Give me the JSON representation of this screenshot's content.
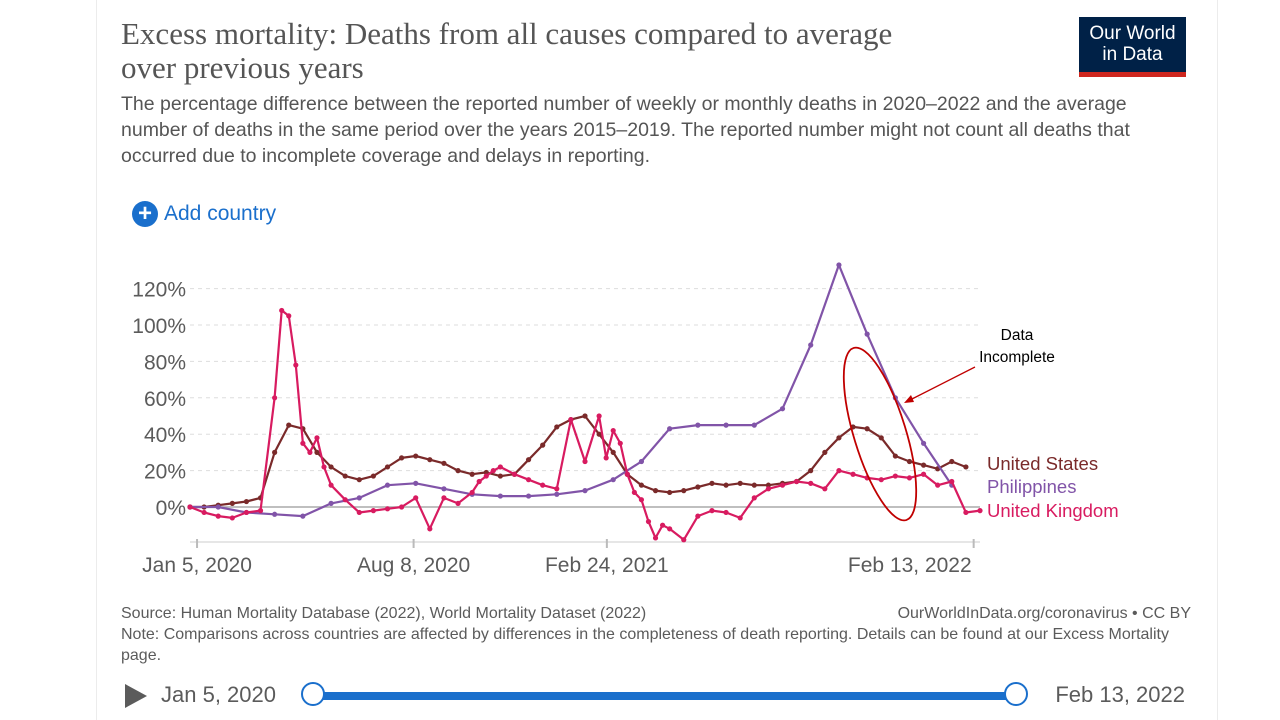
{
  "header": {
    "title": "Excess mortality: Deaths from all causes compared to average over previous years",
    "subtitle": "The percentage difference between the reported number of weekly or monthly deaths in 2020–2022 and the average number of deaths in the same period over the years 2015–2019. The reported number might not count all deaths that occurred due to incomplete coverage and delays in reporting.",
    "logo_line1": "Our World",
    "logo_line2": "in Data"
  },
  "controls": {
    "add_country": "Add country"
  },
  "footer": {
    "source": "Source: Human Mortality Database (2022), World Mortality Dataset (2022)",
    "license": "OurWorldInData.org/coronavirus • CC BY",
    "note": "Note: Comparisons across countries are affected by differences in the completeness of death reporting. Details can be found at our Excess Mortality page."
  },
  "timeline": {
    "start_label": "Jan 5, 2020",
    "end_label": "Feb 13, 2022",
    "start_fraction": 0,
    "end_fraction": 1
  },
  "colors": {
    "grid": "#dddddd",
    "axis": "#bbbbbb",
    "text": "#5b5b5b",
    "accent": "#1a6fcc",
    "annotation": "#c00000"
  },
  "chart_data": {
    "type": "line",
    "x_unit": "week index (weekly data, week 0 = Dec 29, 2019)",
    "x_tick_labels": [
      "Jan 5, 2020",
      "Aug 8, 2020",
      "Feb 24, 2021",
      "Feb 13, 2022"
    ],
    "x_tick_positions": [
      1,
      31.7,
      59.1,
      111.1
    ],
    "xlim": [
      0,
      112
    ],
    "ylim": [
      -20,
      130
    ],
    "y_ticks": [
      0,
      20,
      40,
      60,
      80,
      100,
      120
    ],
    "y_tick_labels": [
      "0%",
      "20%",
      "40%",
      "60%",
      "80%",
      "100%",
      "120%"
    ],
    "grid": "horizontal dashed",
    "legend_placement": "right, labels at line ends",
    "annotation": {
      "text_line1": "Data",
      "text_line2": "Incomplete"
    },
    "series": [
      {
        "name": "United States",
        "color": "#7a2a2a",
        "x": [
          0,
          2,
          4,
          6,
          8,
          10,
          12,
          14,
          16,
          18,
          20,
          22,
          24,
          26,
          28,
          30,
          32,
          34,
          36,
          38,
          40,
          42,
          44,
          46,
          48,
          50,
          52,
          54,
          56,
          58,
          60,
          62,
          64,
          66,
          68,
          70,
          72,
          74,
          76,
          78,
          80,
          82,
          84,
          86,
          88,
          90,
          92,
          94,
          96,
          98,
          100,
          102,
          104,
          106,
          108,
          110
        ],
        "values": [
          0,
          0,
          1,
          2,
          3,
          5,
          30,
          45,
          43,
          30,
          22,
          17,
          15,
          17,
          22,
          27,
          28,
          26,
          24,
          20,
          18,
          19,
          17,
          18,
          26,
          34,
          44,
          48,
          50,
          40,
          30,
          18,
          12,
          9,
          8,
          9,
          11,
          13,
          12,
          13,
          12,
          12,
          13,
          14,
          20,
          30,
          38,
          44,
          43,
          38,
          28,
          25,
          23,
          21,
          25,
          22
        ]
      },
      {
        "name": "Philippines",
        "color": "#8154a8",
        "x": [
          0,
          4,
          8,
          12,
          16,
          20,
          24,
          28,
          32,
          36,
          40,
          44,
          48,
          52,
          56,
          60,
          64,
          68,
          72,
          76,
          80,
          84,
          88,
          92,
          96,
          100,
          104,
          108
        ],
        "values": [
          0,
          0,
          -3,
          -4,
          -5,
          2,
          5,
          12,
          13,
          10,
          7,
          6,
          6,
          7,
          9,
          15,
          25,
          43,
          45,
          45,
          45,
          54,
          89,
          133,
          95,
          60,
          35,
          12
        ]
      },
      {
        "name": "United Kingdom",
        "color": "#d81b60",
        "x": [
          0,
          2,
          4,
          6,
          8,
          10,
          12,
          13,
          14,
          15,
          16,
          17,
          18,
          19,
          20,
          22,
          24,
          26,
          28,
          30,
          32,
          34,
          36,
          38,
          40,
          41,
          42,
          43,
          44,
          46,
          48,
          50,
          52,
          54,
          56,
          58,
          59,
          60,
          61,
          62,
          63,
          64,
          65,
          66,
          67,
          68,
          70,
          72,
          74,
          76,
          78,
          80,
          82,
          84,
          86,
          88,
          90,
          92,
          94,
          96,
          98,
          100,
          102,
          104,
          106,
          108,
          110,
          112
        ],
        "values": [
          0,
          -3,
          -5,
          -6,
          -3,
          -2,
          60,
          108,
          105,
          78,
          35,
          30,
          38,
          22,
          12,
          4,
          -3,
          -2,
          -1,
          0,
          5,
          -12,
          5,
          2,
          8,
          14,
          17,
          20,
          22,
          18,
          15,
          12,
          10,
          48,
          25,
          50,
          27,
          42,
          35,
          18,
          8,
          4,
          -8,
          -17,
          -10,
          -12,
          -18,
          -5,
          -2,
          -3,
          -6,
          5,
          10,
          12,
          14,
          13,
          10,
          20,
          18,
          16,
          15,
          17,
          16,
          18,
          12,
          14,
          -3,
          -2
        ]
      }
    ]
  }
}
